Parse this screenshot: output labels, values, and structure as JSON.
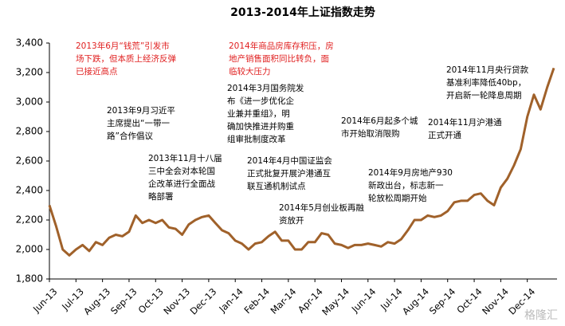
{
  "chart_data": {
    "type": "line",
    "title": "2013-2014年上证指数走势",
    "categories": [
      "Jun-13",
      null,
      null,
      null,
      "Jul-13",
      null,
      null,
      null,
      "Aug-13",
      null,
      null,
      null,
      "Sep-13",
      null,
      null,
      null,
      "Oct-13",
      null,
      null,
      null,
      "Nov-13",
      null,
      null,
      null,
      "Dec-13",
      null,
      null,
      null,
      "Jan-14",
      null,
      null,
      null,
      "Feb-14",
      null,
      null,
      null,
      "Mar-14",
      null,
      null,
      null,
      "Apr-14",
      null,
      null,
      null,
      "May-14",
      null,
      null,
      null,
      "Jun-14",
      null,
      null,
      null,
      "Jul-14",
      null,
      null,
      null,
      "Aug-14",
      null,
      null,
      null,
      "Sep-14",
      null,
      null,
      null,
      "Oct-14",
      null,
      null,
      null,
      "Nov-14",
      null,
      null,
      null,
      "Dec-14",
      null,
      null,
      null,
      null
    ],
    "series": [
      {
        "color": "#a0612a",
        "values": [
          2300,
          2160,
          2000,
          1960,
          2000,
          2030,
          1990,
          2050,
          2030,
          2080,
          2100,
          2090,
          2120,
          2230,
          2180,
          2200,
          2180,
          2200,
          2150,
          2140,
          2100,
          2170,
          2200,
          2220,
          2230,
          2180,
          2130,
          2110,
          2060,
          2040,
          2000,
          2040,
          2050,
          2090,
          2120,
          2060,
          2060,
          2000,
          2000,
          2050,
          2050,
          2110,
          2100,
          2040,
          2030,
          2010,
          2030,
          2030,
          2040,
          2030,
          2020,
          2050,
          2040,
          2070,
          2130,
          2200,
          2200,
          2230,
          2220,
          2230,
          2260,
          2320,
          2330,
          2330,
          2370,
          2380,
          2330,
          2300,
          2420,
          2480,
          2570,
          2680,
          2900,
          3050,
          2950,
          3100,
          3230
        ]
      }
    ],
    "ylim": [
      1800,
      3400
    ],
    "yticks": [
      {
        "value": 1800,
        "label": "1,800"
      },
      {
        "value": 2000,
        "label": "2,000"
      },
      {
        "value": 2200,
        "label": "2,200"
      },
      {
        "value": 2400,
        "label": "2,400"
      },
      {
        "value": 2600,
        "label": "2,600"
      },
      {
        "value": 2800,
        "label": "2,800"
      },
      {
        "value": 3000,
        "label": "3,000"
      },
      {
        "value": 3200,
        "label": "3,200"
      },
      {
        "value": 3400,
        "label": "3,400"
      }
    ],
    "annotations": [
      {
        "color": "#e02020",
        "lines": [
          "2013年6月“钱荒”引发市",
          "场下跌，但本质上经济反弹",
          "已接近高点"
        ]
      },
      {
        "color": "#e02020",
        "lines": [
          "2014年商品房库存积压，房",
          "地产销售面积同比转负，面",
          "临较大压力"
        ]
      },
      {
        "color": "#000000",
        "lines": [
          "2013年9月习近平",
          "主席提出“一带一",
          "路”合作倡议"
        ]
      },
      {
        "color": "#000000",
        "lines": [
          "2013年11月十八届",
          "三中全会对本轮国",
          "企改革进行全面战",
          "略部署"
        ]
      },
      {
        "color": "#000000",
        "lines": [
          "2014年3月国务院发",
          "布《进一步优化企",
          "业兼并重组》，明",
          "确加快推进并购重",
          "组审批制度改革"
        ]
      },
      {
        "color": "#000000",
        "lines": [
          "2014年4月中国证监会",
          "正式批复开展沪港通互",
          "联互通机制试点"
        ]
      },
      {
        "color": "#000000",
        "lines": [
          "2014年5月创业板再融",
          "资放开"
        ]
      },
      {
        "color": "#000000",
        "lines": [
          "2014年6月起多个城",
          "市开始取消限购"
        ]
      },
      {
        "color": "#000000",
        "lines": [
          "2014年9月房地产930",
          "新政出台，标志新一",
          "轮放松周期开始"
        ]
      },
      {
        "color": "#000000",
        "lines": [
          "2014年11月沪港通",
          "正式开通"
        ]
      },
      {
        "color": "#000000",
        "lines": [
          "2014年11月央行贷款",
          "基准利率降低40bp，",
          "开启新一轮降息周期"
        ]
      }
    ],
    "watermark": "格隆汇"
  }
}
